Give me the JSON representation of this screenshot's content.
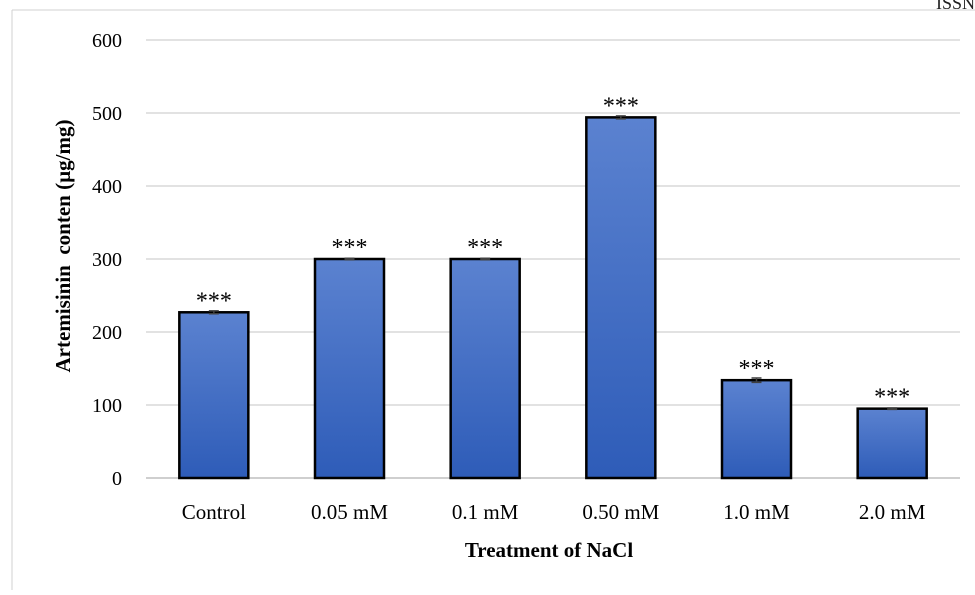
{
  "corner_text": "ISSN",
  "colors": {
    "bar_top": "#5b82d0",
    "bar_bottom": "#2e5cb8",
    "bar_stroke": "#000000",
    "grid": "#d9d9d9",
    "text": "#000000",
    "error_bar": "#404040"
  },
  "chart_data": {
    "type": "bar",
    "title": "",
    "xlabel": "Treatment of NaCl",
    "ylabel": "Artemisinin  conten (µg/mg)",
    "categories": [
      "Control",
      "0.05 mM",
      "0.1 mM",
      "0.50 mM",
      "1.0 mM",
      "2.0 mM"
    ],
    "values": [
      227,
      300,
      300,
      494,
      134,
      95
    ],
    "errors": [
      2,
      1,
      1,
      2,
      3,
      1
    ],
    "annotations": [
      "***",
      "***",
      "***",
      "***",
      "***",
      "***"
    ],
    "ylim": [
      0,
      600
    ],
    "yticks": [
      0,
      100,
      200,
      300,
      400,
      500,
      600
    ],
    "grid": true
  }
}
